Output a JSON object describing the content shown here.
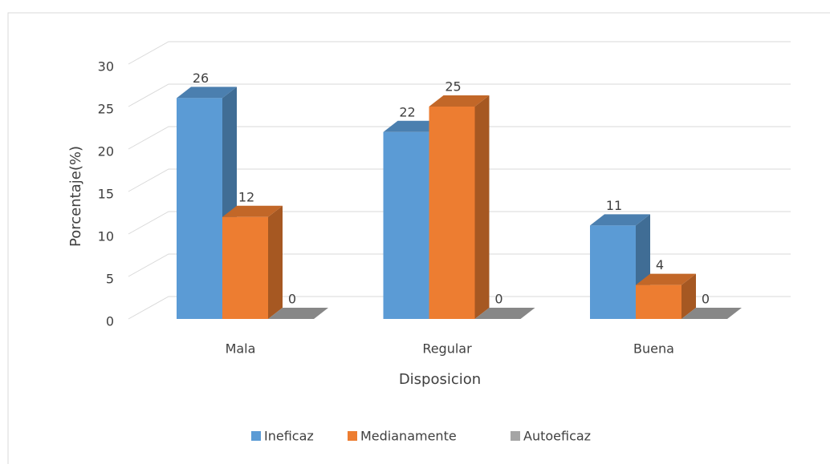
{
  "chart_data": {
    "type": "bar3d",
    "x_label": "Disposicion",
    "y_label": "Porcentaje(%)",
    "categories": [
      "Mala",
      "Regular",
      "Buena"
    ],
    "series": [
      {
        "name": "Ineficaz",
        "color": "#5b9bd5",
        "values": [
          26,
          22,
          11
        ]
      },
      {
        "name": "Medianamente",
        "color": "#ed7d31",
        "values": [
          12,
          25,
          4
        ]
      },
      {
        "name": "Autoeficaz",
        "color": "#a5a5a5",
        "values": [
          0,
          0,
          0
        ]
      }
    ],
    "ylim": [
      0,
      30
    ],
    "yticks": [
      0,
      5,
      10,
      15,
      20,
      25,
      30
    ],
    "grid": true,
    "legend": "bottom"
  }
}
